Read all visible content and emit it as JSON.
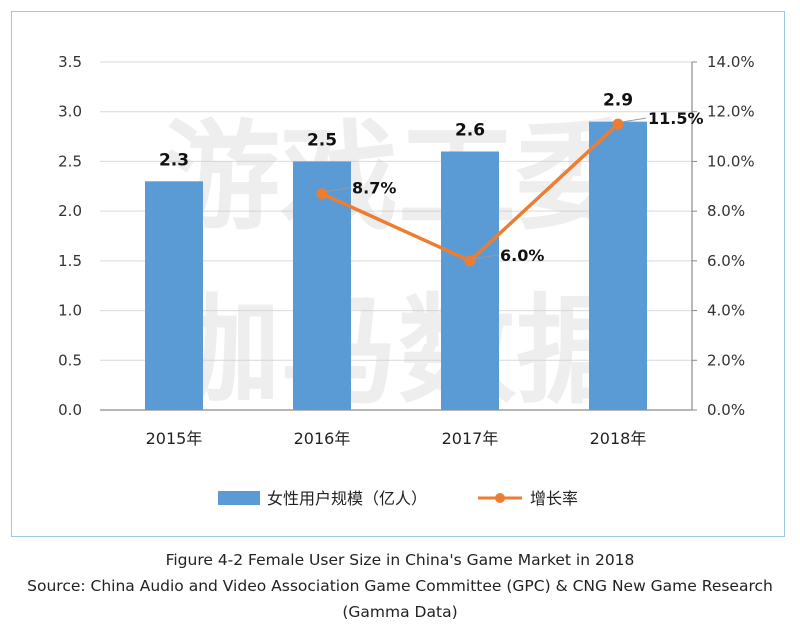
{
  "watermark": {
    "line1": "游戏工委",
    "line2": "伽马数据"
  },
  "caption": {
    "title": "Figure 4-2 Female User Size in China's Game Market in 2018",
    "source_line1": "Source: China Audio and Video Association Game Committee (GPC) & CNG New Game Research",
    "source_line2": "(Gamma Data)"
  },
  "colors": {
    "bar": "#5b9bd5",
    "line": "#ed7d31",
    "grid": "#d9d9d9",
    "border": "#9dc8e2"
  },
  "chart_data": {
    "type": "bar",
    "categories": [
      "2015年",
      "2016年",
      "2017年",
      "2018年"
    ],
    "series": [
      {
        "name": "女性用户规模（亿人）",
        "type": "bar",
        "axis": "left",
        "values": [
          2.3,
          2.5,
          2.6,
          2.9
        ],
        "labels": [
          "2.3",
          "2.5",
          "2.6",
          "2.9"
        ]
      },
      {
        "name": "增长率",
        "type": "line",
        "axis": "right",
        "values": [
          null,
          8.7,
          6.0,
          11.5
        ],
        "labels": [
          "",
          "8.7%",
          "6.0%",
          "11.5%"
        ]
      }
    ],
    "y_left": {
      "min": 0,
      "max": 3.5,
      "step": 0.5,
      "ticks": [
        "0.0",
        "0.5",
        "1.0",
        "1.5",
        "2.0",
        "2.5",
        "3.0",
        "3.5"
      ]
    },
    "y_right": {
      "min": 0,
      "max": 14,
      "step": 2,
      "ticks": [
        "0.0%",
        "2.0%",
        "4.0%",
        "6.0%",
        "8.0%",
        "10.0%",
        "12.0%",
        "14.0%"
      ]
    },
    "grid": true,
    "legend": "bottom"
  }
}
